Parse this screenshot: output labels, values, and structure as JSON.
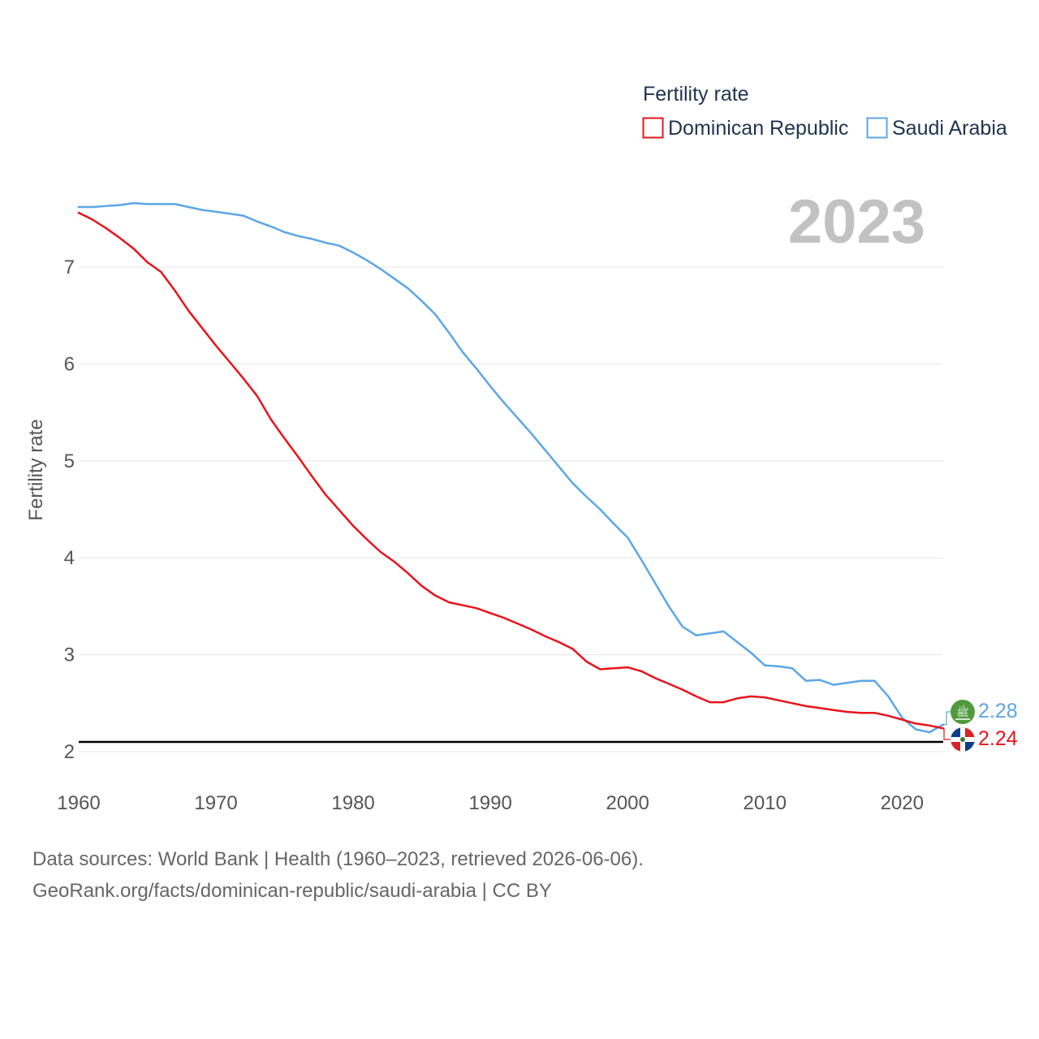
{
  "chart_data": {
    "type": "line",
    "title": "Fertility rate",
    "ylabel": "Fertility rate",
    "xlabel": "",
    "year_label": "2023",
    "xlim": [
      1960,
      2023
    ],
    "ylim": [
      2,
      7.6
    ],
    "x_ticks": [
      1960,
      1970,
      1980,
      1990,
      2000,
      2010,
      2020
    ],
    "y_ticks": [
      2,
      3,
      4,
      5,
      6,
      7
    ],
    "reference_line": 2.1,
    "legend_position": "top-right",
    "x": [
      1960,
      1961,
      1962,
      1963,
      1964,
      1965,
      1966,
      1967,
      1968,
      1969,
      1970,
      1971,
      1972,
      1973,
      1974,
      1975,
      1976,
      1977,
      1978,
      1979,
      1980,
      1981,
      1982,
      1983,
      1984,
      1985,
      1986,
      1987,
      1988,
      1989,
      1990,
      1991,
      1992,
      1993,
      1994,
      1995,
      1996,
      1997,
      1998,
      1999,
      2000,
      2001,
      2002,
      2003,
      2004,
      2005,
      2006,
      2007,
      2008,
      2009,
      2010,
      2011,
      2012,
      2013,
      2014,
      2015,
      2016,
      2017,
      2018,
      2019,
      2020,
      2021,
      2022,
      2023
    ],
    "series": [
      {
        "name": "Dominican Republic",
        "color": "#e8131b",
        "end_value_label": "2.24",
        "flag_icon": "dominican-republic-flag-icon",
        "values": [
          7.56,
          7.49,
          7.4,
          7.3,
          7.19,
          7.05,
          6.95,
          6.76,
          6.55,
          6.37,
          6.19,
          6.02,
          5.85,
          5.67,
          5.43,
          5.23,
          5.04,
          4.84,
          4.65,
          4.49,
          4.33,
          4.19,
          4.06,
          3.96,
          3.84,
          3.71,
          3.61,
          3.54,
          3.51,
          3.48,
          3.43,
          3.38,
          3.32,
          3.26,
          3.19,
          3.13,
          3.06,
          2.93,
          2.85,
          2.86,
          2.87,
          2.83,
          2.76,
          2.7,
          2.64,
          2.57,
          2.51,
          2.51,
          2.55,
          2.57,
          2.56,
          2.53,
          2.5,
          2.47,
          2.45,
          2.43,
          2.41,
          2.4,
          2.4,
          2.37,
          2.33,
          2.29,
          2.27,
          2.24
        ]
      },
      {
        "name": "Saudi Arabia",
        "color": "#5ca6e6",
        "end_value_label": "2.28",
        "flag_icon": "saudi-arabia-flag-icon",
        "values": [
          7.62,
          7.62,
          7.63,
          7.64,
          7.66,
          7.65,
          7.65,
          7.65,
          7.62,
          7.59,
          7.57,
          7.55,
          7.53,
          7.47,
          7.42,
          7.36,
          7.32,
          7.29,
          7.25,
          7.22,
          7.15,
          7.07,
          6.98,
          6.88,
          6.78,
          6.65,
          6.51,
          6.32,
          6.12,
          5.95,
          5.77,
          5.6,
          5.44,
          5.28,
          5.11,
          4.94,
          4.77,
          4.63,
          4.5,
          4.35,
          4.21,
          3.98,
          3.74,
          3.5,
          3.29,
          3.2,
          3.22,
          3.24,
          3.13,
          3.02,
          2.89,
          2.88,
          2.86,
          2.73,
          2.74,
          2.69,
          2.71,
          2.73,
          2.73,
          2.57,
          2.35,
          2.23,
          2.2,
          2.28
        ]
      }
    ]
  },
  "source": {
    "line1": "Data sources: World Bank | Health (1960–2023, retrieved 2026-06-06).",
    "line2": "GeoRank.org/facts/dominican-republic/saudi-arabia | CC BY"
  }
}
